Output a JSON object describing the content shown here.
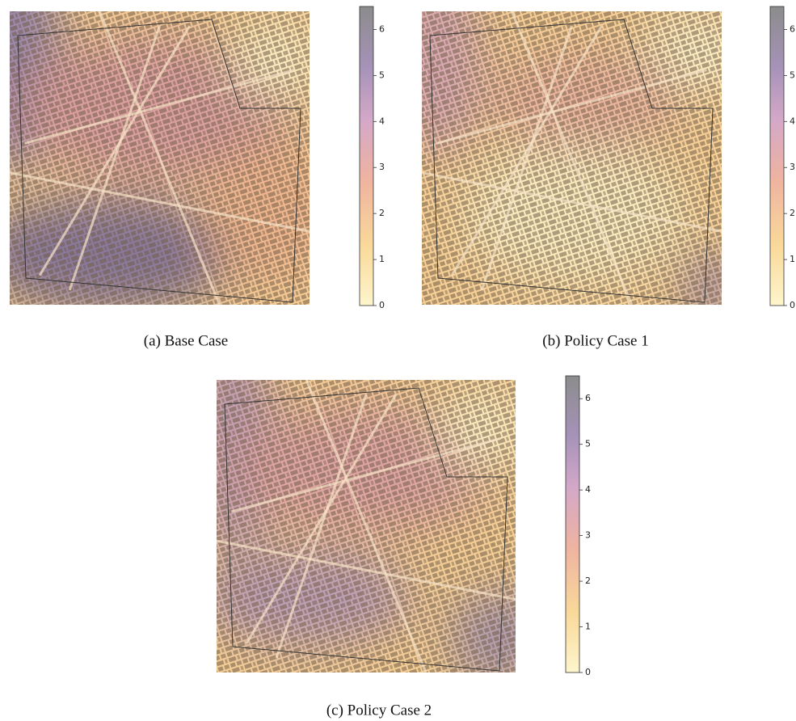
{
  "panels": [
    {
      "caption": "(a) Base Case",
      "colorbar": {
        "lim": [
          0,
          6.5
        ],
        "ticks": [
          0,
          1,
          2,
          3,
          4,
          5,
          6
        ]
      }
    },
    {
      "caption": "(b) Policy Case 1",
      "colorbar": {
        "lim": [
          0,
          6.5
        ],
        "ticks": [
          0,
          1,
          2,
          3,
          4,
          5,
          6
        ]
      }
    },
    {
      "caption": "(c) Policy Case 2",
      "colorbar": {
        "lim": [
          0,
          6.5
        ],
        "ticks": [
          0,
          1,
          2,
          3,
          4,
          5,
          6
        ]
      }
    }
  ]
}
